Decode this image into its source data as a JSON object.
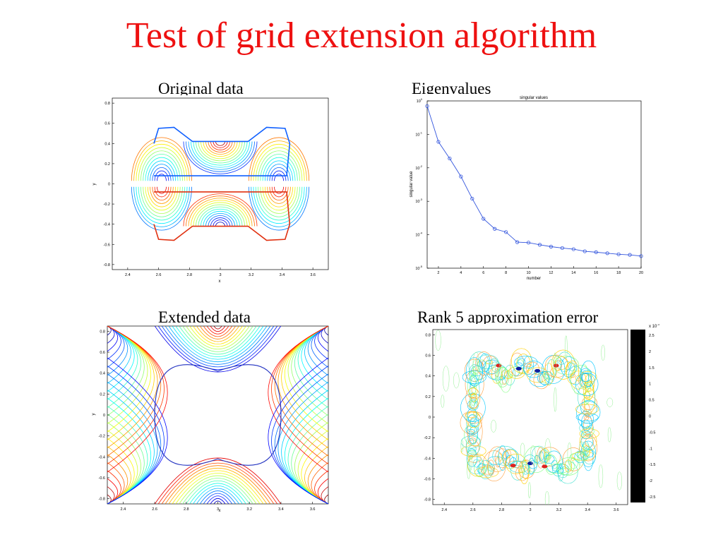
{
  "slide": {
    "title": "Test of grid extension algorithm"
  },
  "colors": {
    "title": "#ee1111",
    "jet": [
      "#00008f",
      "#0000ff",
      "#0080ff",
      "#00ffff",
      "#80ff80",
      "#ffff00",
      "#ff8000",
      "#ff0000",
      "#800000"
    ],
    "eig_line": "#3355dd"
  },
  "panels": {
    "original": {
      "caption": "Original data",
      "xlabel": "x",
      "ylabel": "y",
      "xticks": [
        "2.4",
        "2.6",
        "2.8",
        "3",
        "3.2",
        "3.4",
        "3.6"
      ],
      "yticks": [
        "0.8",
        "0.6",
        "0.4",
        "0.2",
        "0",
        "-0.2",
        "-0.4",
        "-0.6",
        "-0.8"
      ]
    },
    "eigen": {
      "caption": "Eigenvalues",
      "plot_title": "singular values",
      "xlabel": "number",
      "ylabel": "singular value",
      "xticks": [
        "2",
        "4",
        "6",
        "8",
        "10",
        "12",
        "14",
        "16",
        "18",
        "20"
      ],
      "ytick_base": "10",
      "ytick_exps": [
        "0",
        "-1",
        "-2",
        "-3",
        "-4",
        "-5"
      ]
    },
    "extended": {
      "caption": "Extended data",
      "xlabel": "x",
      "ylabel": "y",
      "xticks": [
        "2.4",
        "2.6",
        "2.8",
        "3",
        "3.2",
        "3.4",
        "3.6"
      ],
      "yticks": [
        "0.8",
        "0.6",
        "0.4",
        "0.2",
        "0",
        "-0.2",
        "-0.4",
        "-0.6",
        "-0.8"
      ]
    },
    "error": {
      "caption": "Rank 5 approximation error",
      "xticks": [
        "2.4",
        "2.6",
        "2.8",
        "3",
        "3.2",
        "3.4",
        "3.6"
      ],
      "yticks": [
        "0.8",
        "0.6",
        "0.4",
        "0.2",
        "0",
        "-0.2",
        "-0.4",
        "-0.6",
        "-0.8"
      ],
      "colorbar_exponent": "x 10",
      "colorbar_exponent_power": "-3",
      "colorbar_ticks": [
        "2.5",
        "2",
        "1.5",
        "1",
        "0.5",
        "0",
        "-0.5",
        "-1",
        "-1.5",
        "-2",
        "-2.5"
      ]
    }
  },
  "chart_data": [
    {
      "type": "line",
      "title": "singular values",
      "xlabel": "number",
      "ylabel": "singular value",
      "yscale": "log",
      "xlim": [
        1,
        20
      ],
      "ylim": [
        1e-05,
        1
      ],
      "x": [
        1,
        2,
        3,
        4,
        5,
        6,
        7,
        8,
        9,
        10,
        11,
        12,
        13,
        14,
        15,
        16,
        17,
        18,
        19,
        20
      ],
      "values": [
        0.7,
        0.06,
        0.019,
        0.0055,
        0.0012,
        0.0003,
        0.00015,
        0.00012,
        6e-05,
        5.8e-05,
        5e-05,
        4.4e-05,
        4e-05,
        3.7e-05,
        3.2e-05,
        3e-05,
        2.8e-05,
        2.6e-05,
        2.5e-05,
        2.3e-05
      ]
    },
    {
      "type": "heatmap",
      "title": "Original data",
      "xlabel": "x",
      "ylabel": "y",
      "xlim": [
        2.3,
        3.7
      ],
      "ylim": [
        -0.85,
        0.85
      ]
    },
    {
      "type": "heatmap",
      "title": "Extended data",
      "xlabel": "x",
      "ylabel": "y",
      "xlim": [
        2.3,
        3.7
      ],
      "ylim": [
        -0.85,
        0.85
      ]
    },
    {
      "type": "heatmap",
      "title": "Rank 5 approximation error",
      "xlim": [
        2.3,
        3.7
      ],
      "ylim": [
        -0.85,
        0.85
      ],
      "colorbar_range": [
        -0.0025,
        0.0025
      ]
    }
  ]
}
